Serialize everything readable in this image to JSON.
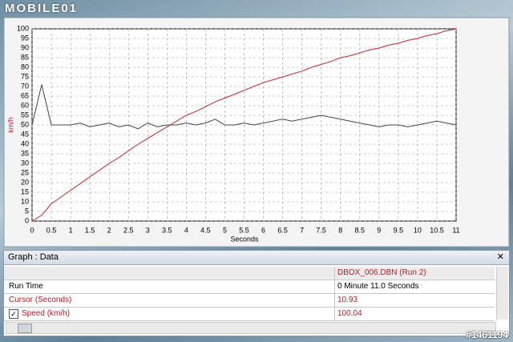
{
  "watermark": "MOBILE01",
  "id_tag": "#1461194",
  "chart_data": {
    "type": "line",
    "y_label": "km/h",
    "x_label": "Seconds",
    "x": [
      0,
      0.25,
      0.5,
      0.75,
      1,
      1.25,
      1.5,
      1.75,
      2,
      2.25,
      2.5,
      2.75,
      3,
      3.25,
      3.5,
      3.75,
      4,
      4.25,
      4.5,
      4.75,
      5,
      5.25,
      5.5,
      5.75,
      6,
      6.25,
      6.5,
      6.75,
      7,
      7.25,
      7.5,
      7.75,
      8,
      8.25,
      8.5,
      8.75,
      9,
      9.25,
      9.5,
      9.75,
      10,
      10.25,
      10.5,
      10.75,
      11
    ],
    "series": [
      {
        "color": "#444444",
        "values": [
          50,
          71,
          50,
          50,
          50,
          51,
          49,
          50,
          51,
          49,
          50,
          48,
          51,
          49,
          50,
          50,
          51,
          50,
          51,
          53,
          50,
          50,
          51,
          50,
          51,
          52,
          53,
          52,
          53,
          54,
          55,
          54,
          53,
          52,
          51,
          50,
          49,
          50,
          50,
          49,
          50,
          51,
          52,
          51,
          50
        ]
      },
      {
        "color": "#c0282d",
        "values": [
          0,
          3,
          9,
          12.5,
          16,
          19.5,
          23,
          26.5,
          30,
          33,
          36.5,
          40,
          43,
          46,
          49,
          52,
          55,
          57,
          59.5,
          62,
          64,
          66,
          68,
          70,
          72,
          73.5,
          75,
          76.5,
          78,
          80,
          81.5,
          83,
          85,
          86,
          87.5,
          89,
          90,
          91.5,
          92.5,
          94,
          95,
          96.5,
          97.5,
          99,
          100
        ]
      }
    ],
    "xlim": [
      0,
      11
    ],
    "xticks": [
      0,
      0.5,
      1,
      1.5,
      2,
      2.5,
      3,
      3.5,
      4,
      4.5,
      5,
      5.5,
      6,
      6.5,
      7,
      7.5,
      8,
      8.5,
      9,
      9.5,
      10,
      10.5,
      11
    ],
    "ylim": [
      0,
      100
    ],
    "yticks": [
      0,
      5,
      10,
      15,
      20,
      25,
      30,
      35,
      40,
      45,
      50,
      55,
      60,
      65,
      70,
      75,
      80,
      85,
      90,
      95,
      100
    ],
    "grid": true
  },
  "data_panel": {
    "title": "Graph : Data",
    "column": "DBOX_006.DBN (Run 2)",
    "rows": [
      [
        "Run Time",
        "0 Minute 11.0 Seconds"
      ],
      [
        "Cursor (Seconds)",
        10.93
      ],
      [
        "Speed (km/h)",
        100.04
      ]
    ]
  }
}
